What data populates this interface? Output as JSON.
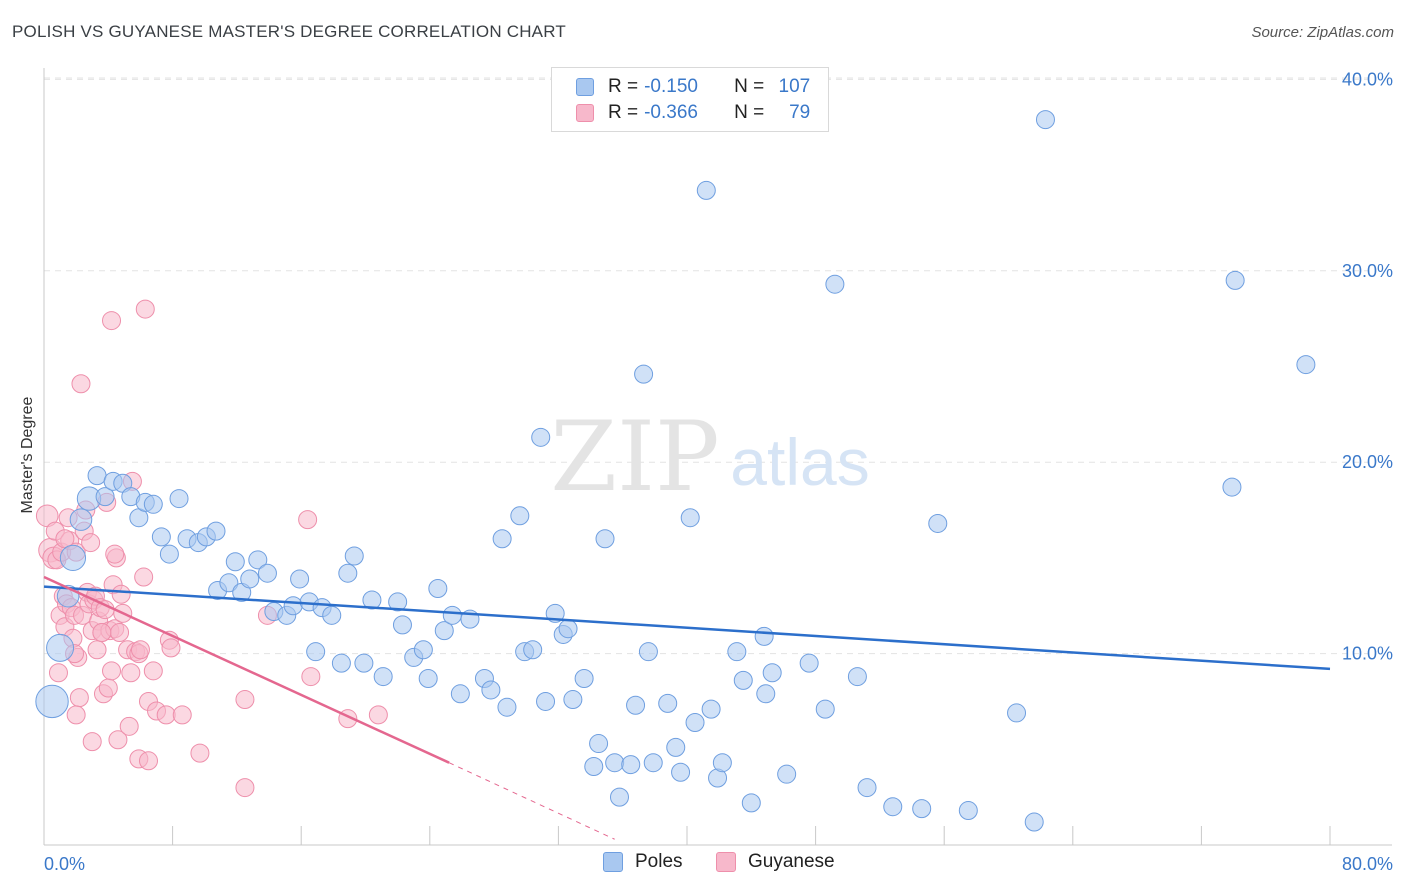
{
  "header": {
    "title": "POLISH VS GUYANESE MASTER'S DEGREE CORRELATION CHART",
    "source": "Source: ZipAtlas.com"
  },
  "watermark": {
    "zip": "ZIP",
    "atlas": "atlas"
  },
  "stats_legend": [
    {
      "swatch": "#a9c8f0",
      "r_key": "R =",
      "r_value": "-0.150",
      "n_key": "N =",
      "n_value": "107"
    },
    {
      "swatch": "#f7b8cb",
      "r_key": "R =",
      "r_value": "-0.366",
      "n_key": "N =",
      "n_value": "79"
    }
  ],
  "colors": {
    "poles_fill": "#a9c8f0",
    "poles_stroke": "#6f9fe0",
    "poles_line": "#2c6fcb",
    "guyanese_fill": "#f7b8cb",
    "guyanese_stroke": "#ee8fab",
    "guyanese_line": "#e4678f",
    "tick_label": "#3a78c9",
    "grid": "#e3e3e3"
  },
  "chart_data": {
    "type": "scatter",
    "title": "POLISH VS GUYANESE MASTER'S DEGREE CORRELATION CHART",
    "xlabel": "",
    "ylabel": "Master's Degree",
    "xlim": [
      0,
      80
    ],
    "ylim": [
      0,
      40
    ],
    "x_tick_labels": [
      "0.0%",
      "80.0%"
    ],
    "y_ticks": [
      10,
      20,
      30,
      40
    ],
    "y_tick_labels": [
      "10.0%",
      "20.0%",
      "30.0%",
      "40.0%"
    ],
    "grid": true,
    "legend": "bottom-center",
    "series": [
      {
        "name": "Poles",
        "trend": {
          "x": [
            0,
            80
          ],
          "y": [
            13.5,
            9.2
          ]
        },
        "points": [
          [
            0.5,
            7.5,
            1.8
          ],
          [
            1.0,
            10.3,
            1.5
          ],
          [
            1.5,
            13.0,
            1.2
          ],
          [
            1.8,
            15.0,
            1.4
          ],
          [
            2.3,
            17.0,
            1.2
          ],
          [
            2.8,
            18.1,
            1.3
          ],
          [
            3.3,
            19.3,
            1.0
          ],
          [
            3.8,
            18.2,
            1.0
          ],
          [
            4.3,
            19.0,
            1.0
          ],
          [
            4.9,
            18.9,
            1.0
          ],
          [
            5.4,
            18.2,
            1.0
          ],
          [
            5.9,
            17.1,
            1.0
          ],
          [
            6.3,
            17.9,
            1.0
          ],
          [
            6.8,
            17.8,
            1.0
          ],
          [
            7.3,
            16.1,
            1.0
          ],
          [
            7.8,
            15.2,
            1.0
          ],
          [
            8.4,
            18.1,
            1.0
          ],
          [
            8.9,
            16.0,
            1.0
          ],
          [
            9.6,
            15.8,
            1.0
          ],
          [
            10.1,
            16.1,
            1.0
          ],
          [
            10.7,
            16.4,
            1.0
          ],
          [
            10.8,
            13.3,
            1.0
          ],
          [
            11.5,
            13.7,
            1.0
          ],
          [
            11.9,
            14.8,
            1.0
          ],
          [
            12.3,
            13.2,
            1.0
          ],
          [
            12.8,
            13.9,
            1.0
          ],
          [
            13.3,
            14.9,
            1.0
          ],
          [
            13.9,
            14.2,
            1.0
          ],
          [
            14.3,
            12.2,
            1.0
          ],
          [
            15.1,
            12.0,
            1.0
          ],
          [
            15.5,
            12.5,
            1.0
          ],
          [
            15.9,
            13.9,
            1.0
          ],
          [
            16.5,
            12.7,
            1.0
          ],
          [
            16.9,
            10.1,
            1.0
          ],
          [
            17.3,
            12.4,
            1.0
          ],
          [
            17.9,
            12.0,
            1.0
          ],
          [
            18.5,
            9.5,
            1.0
          ],
          [
            18.9,
            14.2,
            1.0
          ],
          [
            19.3,
            15.1,
            1.0
          ],
          [
            19.9,
            9.5,
            1.0
          ],
          [
            20.4,
            12.8,
            1.0
          ],
          [
            21.1,
            8.8,
            1.0
          ],
          [
            22.0,
            12.7,
            1.0
          ],
          [
            22.3,
            11.5,
            1.0
          ],
          [
            23.0,
            9.8,
            1.0
          ],
          [
            23.6,
            10.2,
            1.0
          ],
          [
            23.9,
            8.7,
            1.0
          ],
          [
            24.5,
            13.4,
            1.0
          ],
          [
            24.9,
            11.2,
            1.0
          ],
          [
            25.4,
            12.0,
            1.0
          ],
          [
            25.9,
            7.9,
            1.0
          ],
          [
            26.5,
            11.8,
            1.0
          ],
          [
            27.4,
            8.7,
            1.0
          ],
          [
            27.8,
            8.1,
            1.0
          ],
          [
            28.5,
            16.0,
            1.0
          ],
          [
            28.8,
            7.2,
            1.0
          ],
          [
            29.6,
            17.2,
            1.0
          ],
          [
            29.9,
            10.1,
            1.0
          ],
          [
            30.4,
            10.2,
            1.0
          ],
          [
            31.2,
            7.5,
            1.0
          ],
          [
            30.9,
            21.3,
            1.0
          ],
          [
            31.8,
            12.1,
            1.0
          ],
          [
            32.3,
            11.0,
            1.0
          ],
          [
            32.6,
            11.3,
            1.0
          ],
          [
            32.9,
            7.6,
            1.0
          ],
          [
            33.6,
            8.7,
            1.0
          ],
          [
            34.2,
            4.1,
            1.0
          ],
          [
            34.5,
            5.3,
            1.0
          ],
          [
            34.9,
            16.0,
            1.0
          ],
          [
            35.5,
            4.3,
            1.0
          ],
          [
            35.8,
            2.5,
            1.0
          ],
          [
            36.5,
            4.2,
            1.0
          ],
          [
            36.8,
            7.3,
            1.0
          ],
          [
            37.3,
            24.6,
            1.0
          ],
          [
            37.6,
            10.1,
            1.0
          ],
          [
            37.9,
            4.3,
            1.0
          ],
          [
            38.8,
            7.4,
            1.0
          ],
          [
            39.3,
            5.1,
            1.0
          ],
          [
            39.6,
            3.8,
            1.0
          ],
          [
            40.2,
            17.1,
            1.0
          ],
          [
            40.5,
            6.4,
            1.0
          ],
          [
            41.2,
            34.2,
            1.0
          ],
          [
            41.5,
            7.1,
            1.0
          ],
          [
            41.9,
            3.5,
            1.0
          ],
          [
            42.2,
            4.3,
            1.0
          ],
          [
            43.1,
            10.1,
            1.0
          ],
          [
            43.5,
            8.6,
            1.0
          ],
          [
            44.0,
            2.2,
            1.0
          ],
          [
            44.9,
            7.9,
            1.0
          ],
          [
            44.8,
            10.9,
            1.0
          ],
          [
            45.3,
            9.0,
            1.0
          ],
          [
            46.2,
            3.7,
            1.0
          ],
          [
            47.6,
            9.5,
            1.0
          ],
          [
            48.6,
            7.1,
            1.0
          ],
          [
            49.2,
            29.3,
            1.0
          ],
          [
            50.6,
            8.8,
            1.0
          ],
          [
            51.2,
            3.0,
            1.0
          ],
          [
            52.8,
            2.0,
            1.0
          ],
          [
            54.6,
            1.9,
            1.0
          ],
          [
            55.6,
            16.8,
            1.0
          ],
          [
            57.5,
            1.8,
            1.0
          ],
          [
            60.5,
            6.9,
            1.0
          ],
          [
            61.6,
            1.2,
            1.0
          ],
          [
            62.3,
            37.9,
            1.0
          ],
          [
            73.9,
            18.7,
            1.0
          ],
          [
            74.1,
            29.5,
            1.0
          ],
          [
            78.5,
            25.1,
            1.0
          ]
        ]
      },
      {
        "name": "Guyanese",
        "trend": {
          "x": [
            0,
            25.2
          ],
          "y": [
            14.0,
            4.3
          ],
          "dashed_to": {
            "x": 35.5,
            "y": 0.3
          }
        },
        "points": [
          [
            0.2,
            17.2,
            1.2
          ],
          [
            0.4,
            15.4,
            1.3
          ],
          [
            0.6,
            15.0,
            1.2
          ],
          [
            0.7,
            16.4,
            1.0
          ],
          [
            0.8,
            14.9,
            1.0
          ],
          [
            1.0,
            12.0,
            1.0
          ],
          [
            1.1,
            15.3,
            1.0
          ],
          [
            1.2,
            13.0,
            1.0
          ],
          [
            1.3,
            11.4,
            1.0
          ],
          [
            1.4,
            12.6,
            1.0
          ],
          [
            1.5,
            17.1,
            1.0
          ],
          [
            1.6,
            15.9,
            1.0
          ],
          [
            1.7,
            12.4,
            1.0
          ],
          [
            1.8,
            10.8,
            1.0
          ],
          [
            1.9,
            12.0,
            1.0
          ],
          [
            2.0,
            15.3,
            1.0
          ],
          [
            2.1,
            9.8,
            1.0
          ],
          [
            2.2,
            7.7,
            1.0
          ],
          [
            2.3,
            24.1,
            1.0
          ],
          [
            2.4,
            12.0,
            1.0
          ],
          [
            2.5,
            16.4,
            1.0
          ],
          [
            2.6,
            17.5,
            1.0
          ],
          [
            2.7,
            13.2,
            1.0
          ],
          [
            2.8,
            12.6,
            1.0
          ],
          [
            2.9,
            15.8,
            1.0
          ],
          [
            3.0,
            11.2,
            1.0
          ],
          [
            3.1,
            12.8,
            1.0
          ],
          [
            3.2,
            13.0,
            1.0
          ],
          [
            3.3,
            10.2,
            1.0
          ],
          [
            3.4,
            11.7,
            1.0
          ],
          [
            3.5,
            12.4,
            1.0
          ],
          [
            3.6,
            11.1,
            1.0
          ],
          [
            3.7,
            7.9,
            1.0
          ],
          [
            3.8,
            12.3,
            1.0
          ],
          [
            3.9,
            17.9,
            1.0
          ],
          [
            4.0,
            8.2,
            1.0
          ],
          [
            4.1,
            11.2,
            1.0
          ],
          [
            4.2,
            9.1,
            1.0
          ],
          [
            4.3,
            13.6,
            1.0
          ],
          [
            4.4,
            11.3,
            1.0
          ],
          [
            4.5,
            15.0,
            1.0
          ],
          [
            4.6,
            5.5,
            1.0
          ],
          [
            4.7,
            11.1,
            1.0
          ],
          [
            4.8,
            13.1,
            1.0
          ],
          [
            4.9,
            12.1,
            1.0
          ],
          [
            5.2,
            10.2,
            1.0
          ],
          [
            5.4,
            9.0,
            1.0
          ],
          [
            5.5,
            19.0,
            1.0
          ],
          [
            5.7,
            10.1,
            1.0
          ],
          [
            5.9,
            10.0,
            1.0
          ],
          [
            6.0,
            10.2,
            1.0
          ],
          [
            6.2,
            14.0,
            1.0
          ],
          [
            6.5,
            7.5,
            1.0
          ],
          [
            6.8,
            9.1,
            1.0
          ],
          [
            7.0,
            7.0,
            1.0
          ],
          [
            7.6,
            6.8,
            1.0
          ],
          [
            7.8,
            10.7,
            1.0
          ],
          [
            7.9,
            10.3,
            1.0
          ],
          [
            9.7,
            4.8,
            1.0
          ],
          [
            12.5,
            7.6,
            1.0
          ],
          [
            13.9,
            12.0,
            1.0
          ],
          [
            16.4,
            17.0,
            1.0
          ],
          [
            16.6,
            8.8,
            1.0
          ],
          [
            18.9,
            6.6,
            1.0
          ],
          [
            20.8,
            6.8,
            1.0
          ],
          [
            1.3,
            16.0,
            1.0
          ],
          [
            2.0,
            6.8,
            1.0
          ],
          [
            3.0,
            5.4,
            1.0
          ],
          [
            4.2,
            27.4,
            1.0
          ],
          [
            6.3,
            28.0,
            1.0
          ],
          [
            5.3,
            6.2,
            1.0
          ],
          [
            5.9,
            4.5,
            1.0
          ],
          [
            6.5,
            4.4,
            1.0
          ],
          [
            8.6,
            6.8,
            1.0
          ],
          [
            12.5,
            3.0,
            1.0
          ],
          [
            0.9,
            9.0,
            1.0
          ],
          [
            1.9,
            10.0,
            1.0
          ],
          [
            3.6,
            11.1,
            1.0
          ],
          [
            4.4,
            15.2,
            1.0
          ]
        ]
      }
    ]
  },
  "bottom_legend": [
    {
      "label": "Poles",
      "swatch": "#a9c8f0"
    },
    {
      "label": "Guyanese",
      "swatch": "#f7b8cb"
    }
  ]
}
